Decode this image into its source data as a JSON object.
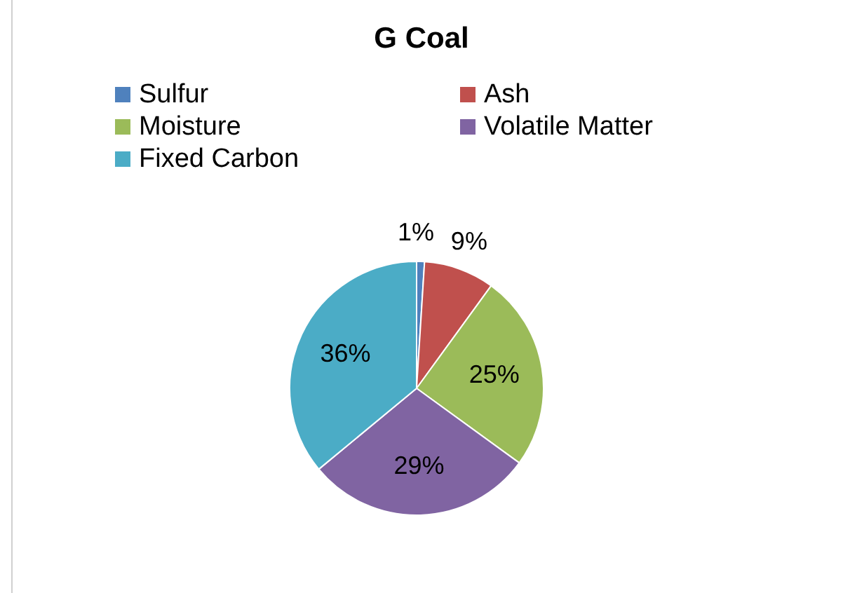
{
  "chart_data": {
    "type": "pie",
    "title": "G Coal",
    "categories": [
      "Sulfur",
      "Ash",
      "Moisture",
      "Volatile Matter",
      "Fixed Carbon"
    ],
    "values": [
      1,
      9,
      25,
      29,
      36
    ],
    "colors": [
      "#4f81bd",
      "#c0504d",
      "#9bbb59",
      "#8064a2",
      "#4bacc6"
    ],
    "value_labels": [
      "1%",
      "9%",
      "25%",
      "29%",
      "36%"
    ],
    "legend": "top"
  }
}
